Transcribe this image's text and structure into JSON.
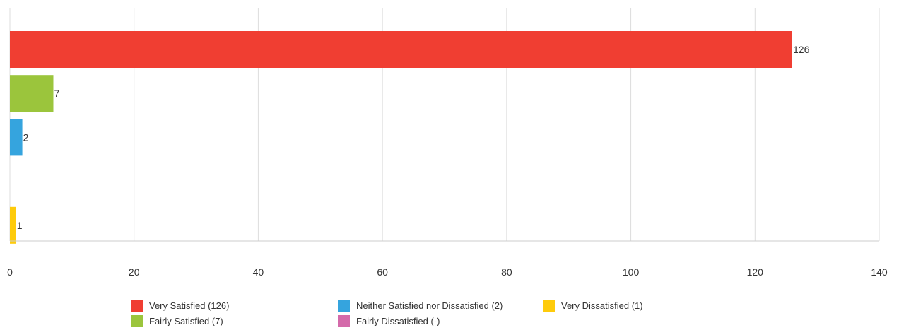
{
  "chart_data": {
    "type": "bar",
    "orientation": "horizontal",
    "categories": [
      "Very Satisfied",
      "Fairly Satisfied",
      "Neither Satisfied nor Dissatisfied",
      "Fairly Dissatisfied",
      "Very Dissatisfied"
    ],
    "values": [
      126,
      7,
      2,
      null,
      1
    ],
    "value_labels": [
      "126",
      "7",
      "2",
      "",
      "1"
    ],
    "colors": [
      "#f03e32",
      "#9bc53c",
      "#35a4de",
      "#d46aaa",
      "#fecb0b"
    ],
    "xlim": [
      0,
      140
    ],
    "x_ticks": [
      0,
      20,
      40,
      60,
      80,
      100,
      120,
      140
    ],
    "x_tick_labels": [
      "0",
      "20",
      "40",
      "60",
      "80",
      "100",
      "120",
      "140"
    ],
    "grid": true,
    "legend_position": "bottom",
    "title": "",
    "xlabel": "",
    "ylabel": ""
  },
  "legend": [
    {
      "label": "Very Satisfied (126)",
      "color": "#f03e32"
    },
    {
      "label": "Neither Satisfied nor Dissatisfied (2)",
      "color": "#35a4de"
    },
    {
      "label": "Very Dissatisfied (1)",
      "color": "#fecb0b"
    },
    {
      "label": "Fairly Satisfied (7)",
      "color": "#9bc53c"
    },
    {
      "label": "Fairly Dissatisfied  (-)",
      "color": "#d46aaa"
    }
  ]
}
